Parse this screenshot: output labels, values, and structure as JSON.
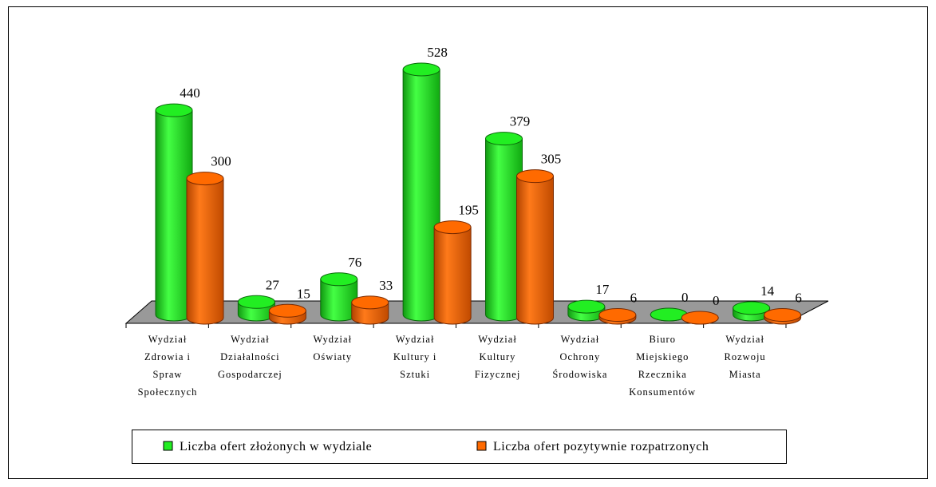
{
  "chart_data": {
    "type": "bar3d",
    "categories": [
      "Wydział\nZdrowia i\nSpraw\nSpołecznych",
      "Wydział\nDziałalności\nGospodarczej",
      "Wydział\nOświaty",
      "Wydział\nKultury i\nSztuki",
      "Wydział\nKultury\nFizycznej",
      "Wydział\nOchrony\nŚrodowiska",
      "Biuro\nMiejskiego\nRzecznika\nKonsumentów",
      "Wydział\nRozwoju\nMiasta"
    ],
    "series": [
      {
        "name": "Liczba ofert złożonych w wydziale",
        "color": "#22ee22",
        "values": [
          440,
          27,
          76,
          528,
          379,
          17,
          0,
          14
        ]
      },
      {
        "name": "Liczba ofert pozytywnie rozpatrzonych",
        "color": "#ff6a00",
        "values": [
          300,
          15,
          33,
          195,
          305,
          6,
          0,
          6
        ]
      }
    ]
  }
}
